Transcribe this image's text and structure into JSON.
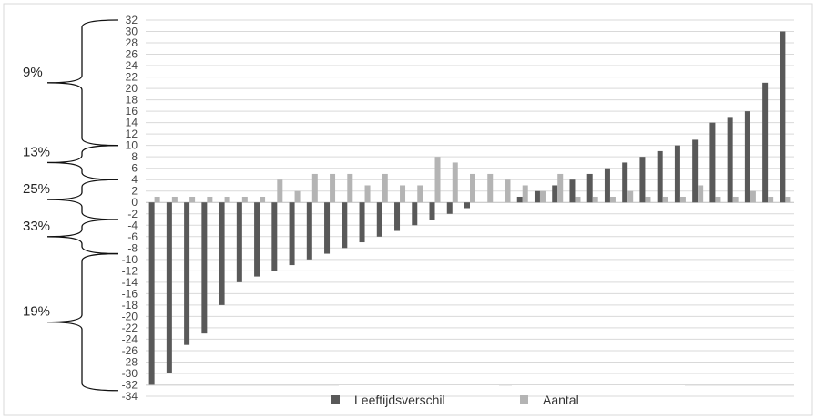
{
  "chart_data": {
    "type": "bar",
    "ylim": [
      -34,
      32
    ],
    "y_ticks": [
      32,
      30,
      28,
      26,
      24,
      22,
      20,
      18,
      16,
      14,
      12,
      10,
      8,
      6,
      4,
      2,
      0,
      -2,
      -4,
      -6,
      -8,
      -10,
      -12,
      -14,
      -16,
      -18,
      -20,
      -22,
      -24,
      -26,
      -28,
      -30,
      -32,
      -34
    ],
    "grid": true,
    "legend": "bottom",
    "colors": {
      "Leeftijdsverschil": "#595959",
      "Aantal": "#b4b4b4"
    },
    "series": [
      {
        "name": "Leeftijdsverschil",
        "values": [
          -32,
          -30,
          -25,
          -23,
          -18,
          -14,
          -13,
          -12,
          -11,
          -10,
          -9,
          -8,
          -7,
          -6,
          -5,
          -4,
          -3,
          -2,
          -1,
          0,
          0,
          1,
          2,
          3,
          4,
          5,
          6,
          7,
          8,
          9,
          10,
          11,
          14,
          15,
          16,
          21,
          30
        ]
      },
      {
        "name": "Aantal",
        "values": [
          1,
          1,
          1,
          1,
          1,
          1,
          1,
          4,
          2,
          5,
          5,
          5,
          3,
          5,
          3,
          3,
          8,
          7,
          5,
          5,
          4,
          3,
          2,
          5,
          1,
          1,
          1,
          2,
          1,
          1,
          1,
          3,
          1,
          1,
          2,
          1,
          1
        ]
      }
    ],
    "brackets": [
      {
        "label": "9%",
        "from": 32,
        "to": 10
      },
      {
        "label": "13%",
        "from": 10,
        "to": 4
      },
      {
        "label": "25%",
        "from": 4,
        "to": -3
      },
      {
        "label": "33%",
        "from": -3,
        "to": -9
      },
      {
        "label": "19%",
        "from": -9,
        "to": -33
      }
    ]
  }
}
